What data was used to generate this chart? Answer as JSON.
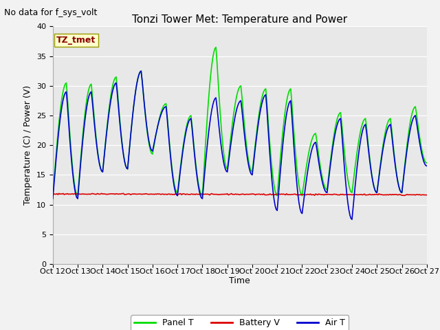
{
  "title": "Tonzi Tower Met: Temperature and Power",
  "no_data_text": "No data for f_sys_volt",
  "xlabel": "Time",
  "ylabel": "Temperature (C) / Power (V)",
  "ylim": [
    0,
    40
  ],
  "yticks": [
    0,
    5,
    10,
    15,
    20,
    25,
    30,
    35,
    40
  ],
  "x_labels": [
    "Oct 12",
    "Oct 13",
    "Oct 14",
    "Oct 15",
    "Oct 16",
    "Oct 17",
    "Oct 18",
    "Oct 19",
    "Oct 20",
    "Oct 21",
    "Oct 22",
    "Oct 23",
    "Oct 24",
    "Oct 25",
    "Oct 26",
    "Oct 27"
  ],
  "annotation_box_text": "TZ_tmet",
  "annotation_box_color": "#ffffcc",
  "annotation_box_edge_color": "#999900",
  "legend_entries": [
    "Panel T",
    "Battery V",
    "Air T"
  ],
  "panel_color": "#00dd00",
  "battery_color": "#dd0000",
  "air_color": "#0000cc",
  "background_color": "#e8e8e8",
  "grid_color": "#ffffff",
  "title_fontsize": 11,
  "label_fontsize": 9,
  "tick_fontsize": 8,
  "no_data_fontsize": 9,
  "annot_fontsize": 9,
  "legend_fontsize": 9
}
